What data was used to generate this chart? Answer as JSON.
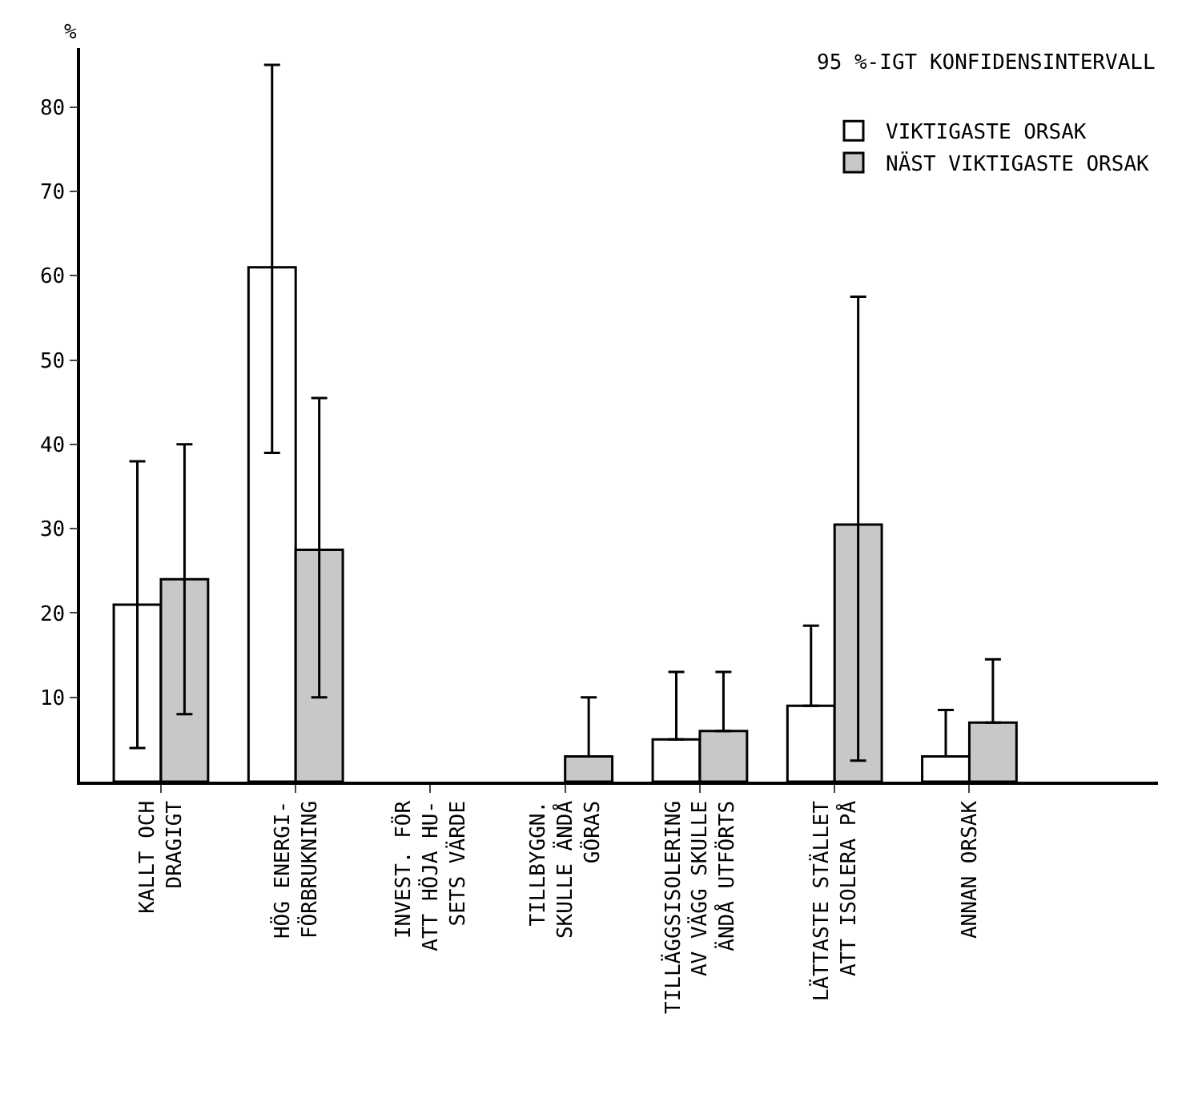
{
  "chart_data": {
    "type": "bar",
    "ylabel": "%",
    "categories": [
      "KALLT OCH\nDRAGIGT",
      "HÖG ENERGI-\nFÖRBRUKNING",
      "INVEST. FÖR\nATT HÖJA HU-\nSETS VÄRDE",
      "TILLBYGGN.\nSKULLE ÄNDÅ\nGÖRAS",
      "TILLÄGGSISOLERING\nAV VÄGG SKULLE\nÄNDÅ UTFÖRTS",
      "LÄTTASTE STÄLLET\nATT ISOLERA PÅ",
      "ANNAN ORSAK"
    ],
    "series": [
      {
        "name": "VIKTIGASTE ORSAK",
        "color": "#ffffff",
        "values": [
          21,
          61,
          null,
          null,
          5,
          9,
          3
        ],
        "errors": [
          [
            4,
            38
          ],
          [
            39,
            85
          ],
          null,
          null,
          [
            5,
            13
          ],
          [
            9,
            18.5
          ],
          [
            3,
            8.5
          ]
        ]
      },
      {
        "name": "NÄST VIKTIGASTE ORSAK",
        "color": "#c8c8c8",
        "values": [
          24,
          27.5,
          null,
          3,
          6,
          30.5,
          7
        ],
        "errors": [
          [
            8,
            40
          ],
          [
            10,
            45.5
          ],
          null,
          [
            3,
            10
          ],
          [
            6,
            13
          ],
          [
            2.5,
            57.5
          ],
          [
            7,
            14.5
          ]
        ]
      }
    ],
    "ylim": [
      0,
      87
    ],
    "yticks": [
      10,
      20,
      30,
      40,
      50,
      60,
      70,
      80
    ],
    "legend": "top right",
    "annotations": [
      "95 %-IGT KONFIDENSINTERVALL"
    ]
  }
}
